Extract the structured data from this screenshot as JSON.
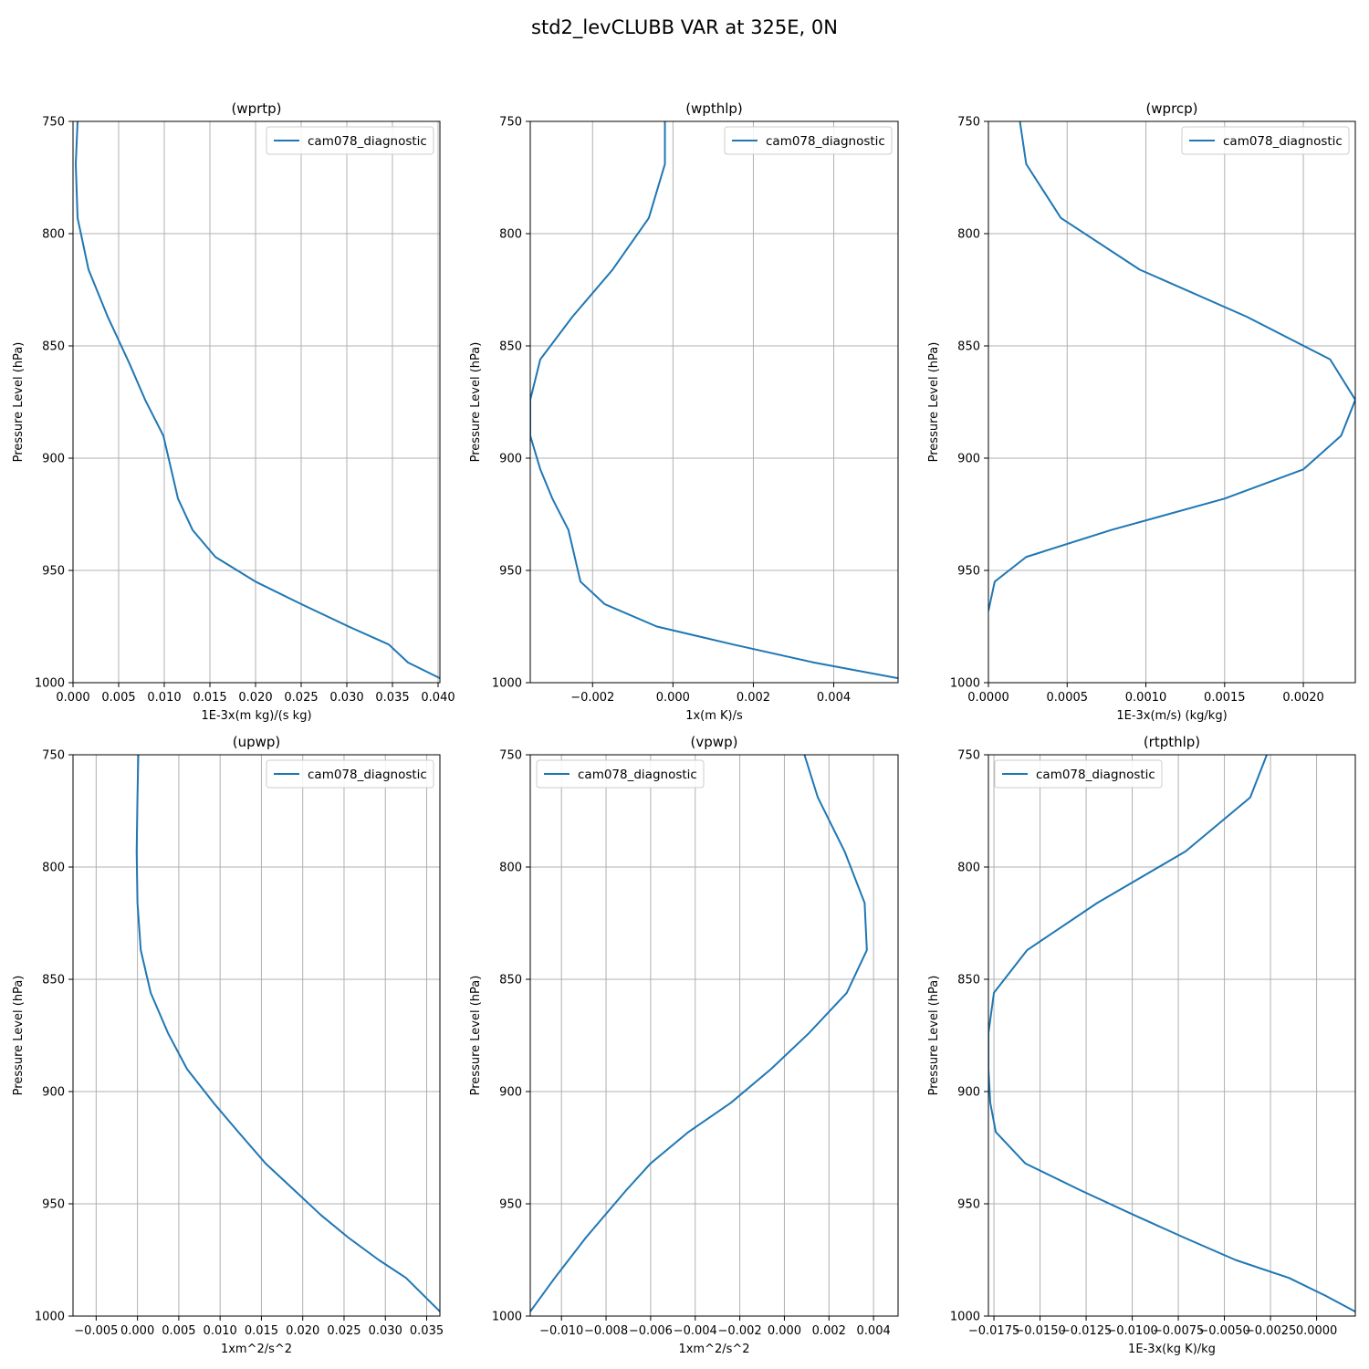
{
  "figure": {
    "title": "std2_levCLUBB VAR at 325E, 0N"
  },
  "chart_data": [
    {
      "type": "line",
      "title": "(wprtp)",
      "xlabel": "1E-3x(m kg)/(s kg)",
      "ylabel": "Pressure Level (hPa)",
      "xlim": [
        0.0,
        0.0402
      ],
      "ylim": [
        1000,
        750
      ],
      "xticks": [
        0,
        0.005,
        0.01,
        0.015,
        0.02,
        0.025,
        0.03,
        0.035,
        0.04
      ],
      "xtick_labels": [
        "0.000",
        "0.005",
        "0.010",
        "0.015",
        "0.020",
        "0.025",
        "0.030",
        "0.035",
        "0.040"
      ],
      "yticks": [
        750,
        800,
        850,
        900,
        950,
        1000
      ],
      "ytick_labels": [
        "750",
        "800",
        "850",
        "900",
        "950",
        "1000"
      ],
      "grid": true,
      "legend_position": "upper-right",
      "series": [
        {
          "name": "cam078_diagnostic",
          "color": "#1f77b4",
          "x": [
            0.0005,
            0.0003,
            0.0005,
            0.0017,
            0.0038,
            0.0062,
            0.0079,
            0.0099,
            0.0115,
            0.0131,
            0.0156,
            0.02,
            0.025,
            0.0302,
            0.0346,
            0.0367,
            0.0402
          ],
          "y": [
            750,
            769,
            793,
            816,
            837,
            858,
            874,
            890,
            918,
            932,
            944,
            955,
            965,
            975,
            983,
            991,
            998
          ]
        }
      ]
    },
    {
      "type": "line",
      "title": "(wpthlp)",
      "xlabel": "1x(m K)/s",
      "ylabel": "Pressure Level (hPa)",
      "xlim": [
        -0.00355,
        0.0056
      ],
      "ylim": [
        1000,
        750
      ],
      "xticks": [
        -0.002,
        0.0,
        0.002,
        0.004
      ],
      "xtick_labels": [
        "−0.002",
        "0.000",
        "0.002",
        "0.004"
      ],
      "yticks": [
        750,
        800,
        850,
        900,
        950,
        1000
      ],
      "ytick_labels": [
        "750",
        "800",
        "850",
        "900",
        "950",
        "1000"
      ],
      "grid": true,
      "legend_position": "upper-right",
      "series": [
        {
          "name": "cam078_diagnostic",
          "color": "#1f77b4",
          "x": [
            -0.0002,
            -0.0002,
            -0.0006,
            -0.0015,
            -0.0025,
            -0.0033,
            -0.00355,
            -0.00355,
            -0.0033,
            -0.003,
            -0.0026,
            -0.0023,
            -0.0017,
            -0.0004,
            0.0015,
            0.0035,
            0.0056
          ],
          "y": [
            750,
            769,
            793,
            816,
            837,
            856,
            874,
            890,
            905,
            918,
            932,
            955,
            965,
            975,
            983,
            991,
            998
          ]
        }
      ]
    },
    {
      "type": "line",
      "title": "(wprcp)",
      "xlabel": "1E-3x(m/s) (kg/kg)",
      "ylabel": "Pressure Level (hPa)",
      "xlim": [
        0.0,
        0.00233
      ],
      "ylim": [
        1000,
        750
      ],
      "xticks": [
        0,
        0.0005,
        0.001,
        0.0015,
        0.002
      ],
      "xtick_labels": [
        "0.0000",
        "0.0005",
        "0.0010",
        "0.0015",
        "0.0020"
      ],
      "yticks": [
        750,
        800,
        850,
        900,
        950,
        1000
      ],
      "ytick_labels": [
        "750",
        "800",
        "850",
        "900",
        "950",
        "1000"
      ],
      "grid": true,
      "legend_position": "upper-right",
      "series": [
        {
          "name": "cam078_diagnostic",
          "color": "#1f77b4",
          "x": [
            0.0002,
            0.00024,
            0.00046,
            0.00096,
            0.00164,
            0.00217,
            0.00233,
            0.00224,
            0.002,
            0.0015,
            0.00078,
            0.00024,
            4e-05,
            0.0
          ],
          "y": [
            750,
            769,
            793,
            816,
            837,
            856,
            874,
            890,
            905,
            918,
            932,
            944,
            955,
            968
          ]
        }
      ]
    },
    {
      "type": "line",
      "title": "(upwp)",
      "xlabel": "1xm^2/s^2",
      "ylabel": "Pressure Level (hPa)",
      "xlim": [
        -0.0078,
        0.0366
      ],
      "ylim": [
        1000,
        750
      ],
      "xticks": [
        -0.005,
        0.0,
        0.005,
        0.01,
        0.015,
        0.02,
        0.025,
        0.03,
        0.035
      ],
      "xtick_labels": [
        "−0.005",
        "0.000",
        "0.005",
        "0.010",
        "0.015",
        "0.020",
        "0.025",
        "0.030",
        "0.035"
      ],
      "yticks": [
        750,
        800,
        850,
        900,
        950,
        1000
      ],
      "ytick_labels": [
        "750",
        "800",
        "850",
        "900",
        "950",
        "1000"
      ],
      "grid": true,
      "legend_position": "upper-right",
      "series": [
        {
          "name": "cam078_diagnostic",
          "color": "#1f77b4",
          "x": [
            0.0001,
            0.0,
            -0.0001,
            0.0,
            0.0004,
            0.0016,
            0.0037,
            0.006,
            0.0092,
            0.0122,
            0.0155,
            0.019,
            0.0222,
            0.0255,
            0.0292,
            0.0325,
            0.0366
          ],
          "y": [
            750,
            769,
            793,
            816,
            837,
            856,
            874,
            890,
            905,
            918,
            932,
            944,
            955,
            965,
            975,
            983,
            998
          ]
        }
      ]
    },
    {
      "type": "line",
      "title": "(vpwp)",
      "xlabel": "1xm^2/s^2",
      "ylabel": "Pressure Level (hPa)",
      "xlim": [
        -0.0114,
        0.0051
      ],
      "ylim": [
        1000,
        750
      ],
      "xticks": [
        -0.01,
        -0.008,
        -0.006,
        -0.004,
        -0.002,
        0.0,
        0.002,
        0.004
      ],
      "xtick_labels": [
        "−0.010",
        "−0.008",
        "−0.006",
        "−0.004",
        "−0.002",
        "0.000",
        "0.002",
        "0.004"
      ],
      "yticks": [
        750,
        800,
        850,
        900,
        950,
        1000
      ],
      "ytick_labels": [
        "750",
        "800",
        "850",
        "900",
        "950",
        "1000"
      ],
      "grid": true,
      "legend_position": "upper-left",
      "series": [
        {
          "name": "cam078_diagnostic",
          "color": "#1f77b4",
          "x": [
            0.0009,
            0.0015,
            0.0027,
            0.0036,
            0.0037,
            0.0028,
            0.0011,
            -0.0006,
            -0.0024,
            -0.0043,
            -0.006,
            -0.0071,
            -0.0089,
            -0.0103,
            -0.0114
          ],
          "y": [
            750,
            769,
            793,
            816,
            837,
            856,
            874,
            890,
            905,
            918,
            932,
            944,
            965,
            983,
            998
          ]
        }
      ]
    },
    {
      "type": "line",
      "title": "(rtpthlp)",
      "xlabel": "1E-3x(kg K)/kg",
      "ylabel": "Pressure Level (hPa)",
      "xlim": [
        -0.0178,
        0.0021
      ],
      "ylim": [
        1000,
        750
      ],
      "xticks": [
        -0.0175,
        -0.015,
        -0.0125,
        -0.01,
        -0.0075,
        -0.005,
        -0.0025,
        0.0
      ],
      "xtick_labels": [
        "−0.0175",
        "−0.0150",
        "−0.0125",
        "−0.0100",
        "−0.0075",
        "−0.0050",
        "−0.0025",
        "0.0000"
      ],
      "yticks": [
        750,
        800,
        850,
        900,
        950,
        1000
      ],
      "ytick_labels": [
        "750",
        "800",
        "850",
        "900",
        "950",
        "1000"
      ],
      "grid": true,
      "legend_position": "upper-left",
      "series": [
        {
          "name": "cam078_diagnostic",
          "color": "#1f77b4",
          "x": [
            -0.0027,
            -0.0036,
            -0.0071,
            -0.0119,
            -0.0157,
            -0.0175,
            -0.0178,
            -0.0178,
            -0.0177,
            -0.0174,
            -0.0158,
            -0.0128,
            -0.0099,
            -0.0072,
            -0.0044,
            -0.0015,
            0.0005,
            0.0021
          ],
          "y": [
            750,
            769,
            793,
            816,
            837,
            856,
            874,
            890,
            905,
            918,
            932,
            944,
            955,
            965,
            975,
            983,
            991,
            998
          ]
        }
      ]
    }
  ]
}
